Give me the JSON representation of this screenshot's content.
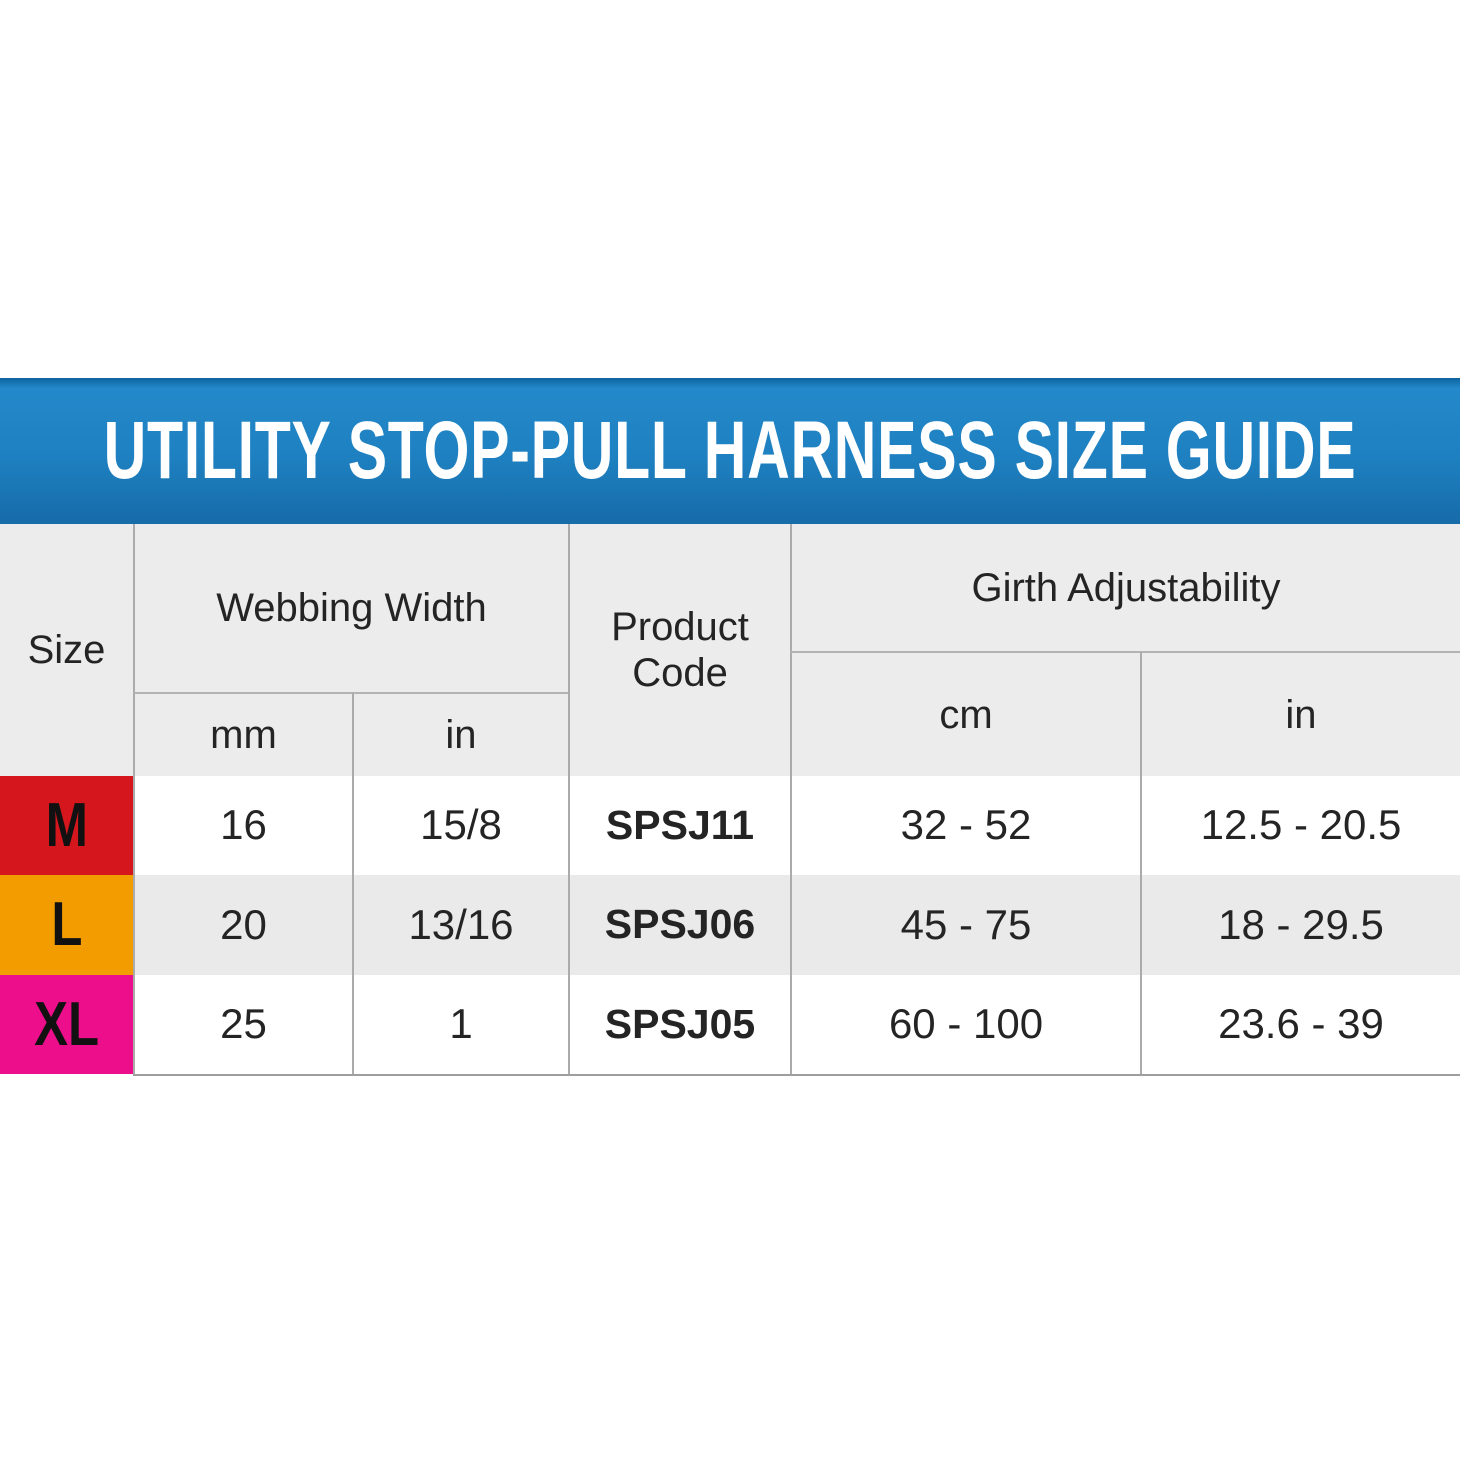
{
  "banner": {
    "title": "UTILITY STOP-PULL HARNESS SIZE GUIDE",
    "bg_color": "#1e80c0",
    "text_color": "#ffffff"
  },
  "table": {
    "headers": {
      "size": "Size",
      "webbing_group": "Webbing Width",
      "webbing_mm": "mm",
      "webbing_in": "in",
      "product_code": "Product Code",
      "girth_group": "Girth Adjustability",
      "girth_cm": "cm",
      "girth_in": "in"
    },
    "rows": [
      {
        "size": "M",
        "color": "#d5161d",
        "mm": "16",
        "in": "15/8",
        "code": "SPSJ11",
        "cm": "32 - 52",
        "girth_in": "12.5 - 20.5"
      },
      {
        "size": "L",
        "color": "#f39c00",
        "mm": "20",
        "in": "13/16",
        "code": "SPSJ06",
        "cm": "45 - 75",
        "girth_in": "18 - 29.5"
      },
      {
        "size": "XL",
        "color": "#ed0e8c",
        "mm": "25",
        "in": "1",
        "code": "SPSJ05",
        "cm": "60 - 100",
        "girth_in": "23.6 - 39"
      }
    ],
    "style": {
      "header_bg": "#ececec",
      "zebra_bg": "#eaeaea",
      "border_color": "#ababab"
    }
  },
  "chart_data": {
    "type": "table",
    "title": "UTILITY STOP-PULL HARNESS SIZE GUIDE",
    "columns": [
      "Size",
      "Webbing Width (mm)",
      "Webbing Width (in)",
      "Product Code",
      "Girth Adjustability (cm)",
      "Girth Adjustability (in)"
    ],
    "rows": [
      [
        "M",
        "16",
        "15/8",
        "SPSJ11",
        "32 - 52",
        "12.5 - 20.5"
      ],
      [
        "L",
        "20",
        "13/16",
        "SPSJ06",
        "45 - 75",
        "18 - 29.5"
      ],
      [
        "XL",
        "25",
        "1",
        "SPSJ05",
        "60 - 100",
        "23.6 - 39"
      ]
    ],
    "row_colors": [
      "#d5161d",
      "#f39c00",
      "#ed0e8c"
    ],
    "layout": {
      "grid": "on",
      "zebra_row": "L",
      "header_position": "top"
    }
  }
}
